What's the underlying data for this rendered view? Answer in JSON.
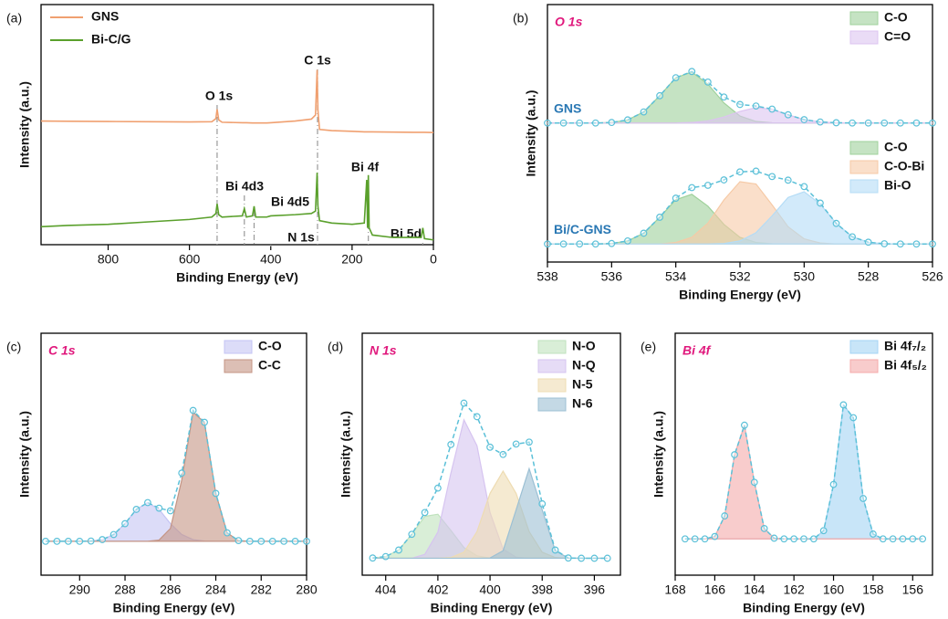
{
  "chart_data": [
    {
      "type": "line",
      "panel_label": "(a)",
      "xlabel": "Binding Energy (eV)",
      "ylabel": "Intensity (a.u.)",
      "xlim": [
        965,
        0
      ],
      "xticks": [
        800,
        600,
        400,
        200,
        0
      ],
      "ylim": [
        0,
        100
      ],
      "x": [
        965,
        900,
        800,
        700,
        600,
        545,
        535,
        532,
        528,
        520,
        470,
        465,
        460,
        445,
        441,
        437,
        410,
        400,
        340,
        300,
        290,
        286,
        284,
        280,
        250,
        200,
        170,
        164,
        162,
        160,
        158,
        150,
        100,
        50,
        30,
        26,
        22,
        0
      ],
      "series": [
        {
          "name": "GNS",
          "color": "#f0a070",
          "values": [
            51.5,
            51.4,
            51.3,
            51.2,
            51.1,
            51.2,
            52.5,
            56.4,
            52,
            51,
            50.8,
            50.8,
            50.8,
            50.7,
            50.7,
            50.7,
            50.7,
            50.8,
            51.5,
            52.3,
            54,
            72.8,
            56,
            48,
            47.5,
            47.2,
            47,
            47,
            47,
            47,
            47,
            47,
            46.9,
            46.8,
            46.8,
            46.8,
            46.8,
            46.7
          ]
        },
        {
          "name": "Bi-C/G",
          "color": "#5aa02c",
          "values": [
            7.5,
            8,
            8.5,
            9.5,
            10.5,
            11.5,
            13,
            17,
            12.5,
            11.5,
            12,
            15,
            11.5,
            12,
            16,
            11.5,
            11.5,
            12,
            12.5,
            13,
            14,
            30,
            16,
            10,
            9,
            8.5,
            9,
            27,
            7,
            29,
            7,
            4,
            3,
            3,
            3,
            7,
            2.5,
            2
          ]
        }
      ],
      "annotations": [
        {
          "text": "O 1s",
          "x": 532
        },
        {
          "text": "Bi 4d3",
          "x": 465
        },
        {
          "text": "Bi 4d5",
          "x": 441
        },
        {
          "text": "N 1s",
          "x": 400
        },
        {
          "text": "C 1s",
          "x": 285
        },
        {
          "text": "Bi 4f",
          "x": 160
        },
        {
          "text": "Bi 5d",
          "x": 26
        }
      ]
    },
    {
      "type": "xps-fit",
      "panel_label": "(b)",
      "title": "O 1s",
      "xlabel": "Binding Energy (eV)",
      "ylabel": "Intensity (a.u.)",
      "xlim": [
        538,
        526
      ],
      "xticks": [
        538,
        536,
        534,
        532,
        530,
        528,
        526
      ],
      "ylim": [
        0,
        100
      ],
      "envelope_color": "#5bc0d8",
      "x": [
        538,
        537.5,
        537,
        536.5,
        536,
        535.5,
        535,
        534.5,
        534,
        533.5,
        533,
        532.5,
        532,
        531.5,
        531,
        530.5,
        530,
        529.5,
        529,
        528.5,
        528,
        527.5,
        527,
        526.5,
        526
      ],
      "spectra": [
        {
          "label": "GNS",
          "label_color": "#2a78b4",
          "series": [
            {
              "name": "C-O",
              "color": "#9fd19b",
              "values": [
                54,
                54,
                54,
                54,
                54.2,
                55.2,
                58.3,
                64.6,
                71.6,
                73.8,
                69.1,
                61.8,
                56.7,
                54.6,
                54.1,
                54,
                54,
                54,
                54,
                54,
                54,
                54,
                54,
                54,
                54
              ]
            },
            {
              "name": "C=O",
              "color": "#dcc4f0",
              "values": [
                54,
                54,
                54,
                54,
                54,
                54,
                54,
                54,
                54,
                54.2,
                54.8,
                56.3,
                58.5,
                60,
                59.3,
                57.2,
                55.3,
                54.4,
                54.1,
                54,
                54,
                54,
                54,
                54,
                54
              ]
            }
          ],
          "envelope": [
            54,
            54,
            54,
            54,
            54.2,
            55.2,
            58.3,
            64.6,
            71.6,
            74,
            69.9,
            64.1,
            61.2,
            60.6,
            59.4,
            57.2,
            55.3,
            54.4,
            54.1,
            54,
            54,
            54,
            54,
            54,
            54
          ]
        },
        {
          "label": "Bi/C-GNS",
          "label_color": "#2a78b4",
          "series": [
            {
              "name": "C-O",
              "color": "#9fd19b",
              "values": [
                7,
                7,
                7,
                7,
                7.2,
                8.2,
                11.2,
                17.4,
                24.2,
                26.3,
                21.7,
                14.6,
                9.6,
                7.6,
                7.1,
                7,
                7,
                7,
                7,
                7,
                7,
                7,
                7,
                7,
                7
              ]
            },
            {
              "name": "C-O-Bi",
              "color": "#f6caa6",
              "values": [
                7,
                7,
                7,
                7,
                7,
                7,
                7,
                7,
                7.6,
                9.6,
                15.1,
                24.1,
                31.2,
                30.3,
                22.2,
                13.7,
                9,
                7.4,
                7,
                7,
                7,
                7,
                7,
                7,
                7
              ]
            },
            {
              "name": "Bi-O",
              "color": "#b4dcf6",
              "values": [
                7,
                7,
                7,
                7,
                7,
                7,
                7,
                7,
                7,
                7,
                7,
                7.2,
                8.2,
                11.4,
                17.9,
                25.1,
                27.3,
                22.5,
                15,
                9.8,
                7.7,
                7.1,
                7,
                7,
                7
              ]
            }
          ],
          "envelope": [
            7,
            7,
            7,
            7,
            7.2,
            8.2,
            11.2,
            17.4,
            24.8,
            28.9,
            29.8,
            31.9,
            35,
            35.3,
            33.2,
            31.8,
            29.3,
            22.9,
            15,
            9.8,
            7.7,
            7.1,
            7,
            7,
            7
          ]
        }
      ]
    },
    {
      "type": "xps-fit",
      "panel_label": "(c)",
      "title": "C 1s",
      "xlabel": "Binding Energy (eV)",
      "ylabel": "Intensity (a.u.)",
      "xlim": [
        291.7,
        280
      ],
      "xticks": [
        290,
        288,
        286,
        284,
        282,
        280
      ],
      "ylim": [
        0,
        100
      ],
      "envelope_color": "#5bc0d8",
      "x": [
        291.5,
        291,
        290.5,
        290,
        289.5,
        289,
        288.5,
        288,
        287.5,
        287,
        286.5,
        286,
        285.5,
        285,
        284.5,
        284,
        283.5,
        283,
        282.5,
        282,
        281.5,
        281,
        280.5,
        280
      ],
      "spectra": [
        {
          "series": [
            {
              "name": "C-O",
              "color": "#c4c4f4",
              "values": [
                14,
                14,
                14,
                14,
                14.1,
                14.7,
                16.8,
                21.3,
                27.2,
                30,
                27.2,
                21.3,
                16.8,
                14.7,
                14.1,
                14,
                14,
                14,
                14,
                14,
                14,
                14,
                14,
                14
              ]
            },
            {
              "name": "C-C",
              "color": "#c49484",
              "values": [
                14,
                14,
                14,
                14,
                14,
                14,
                14,
                14,
                14,
                14,
                14.5,
                19.3,
                39.4,
                67.4,
                63.1,
                33.8,
                17.5,
                14.3,
                14,
                14,
                14,
                14,
                14,
                14
              ]
            }
          ],
          "envelope": [
            14,
            14,
            14,
            14,
            14.1,
            14.7,
            16.8,
            21.3,
            27.2,
            30,
            27.7,
            26.6,
            42.2,
            68.1,
            63.2,
            33.8,
            17.5,
            14.3,
            14,
            14,
            14,
            14,
            14,
            14
          ]
        }
      ]
    },
    {
      "type": "xps-fit",
      "panel_label": "(d)",
      "title": "N 1s",
      "xlabel": "Binding Energy (eV)",
      "ylabel": "Intensity (a.u.)",
      "xlim": [
        404.9,
        395
      ],
      "xticks": [
        404,
        402,
        400,
        398,
        396
      ],
      "ylim": [
        0,
        100
      ],
      "envelope_color": "#5bc0d8",
      "x": [
        404.5,
        404,
        403.5,
        403,
        402.5,
        402,
        401.5,
        401,
        400.5,
        400,
        399.5,
        399,
        398.5,
        398,
        397.5,
        397,
        396.5,
        396,
        395.5
      ],
      "spectra": [
        {
          "series": [
            {
              "name": "N-O",
              "color": "#bfe2bd",
              "values": [
                7.1,
                7.7,
                10.4,
                16.9,
                24.3,
                25.2,
                18.5,
                11.4,
                8,
                7.1,
                7,
                7,
                7,
                7,
                7,
                7,
                7,
                7,
                7
              ]
            },
            {
              "name": "N-Q",
              "color": "#d6c4f0",
              "values": [
                7,
                7,
                7,
                7,
                8.6,
                17.8,
                42.2,
                64.2,
                53.5,
                25.9,
                10.8,
                7.4,
                7,
                7,
                7,
                7,
                7,
                7,
                7
              ]
            },
            {
              "name": "N-5",
              "color": "#eedcb2",
              "values": [
                7,
                7,
                7,
                7,
                7,
                7,
                7.3,
                9.5,
                18,
                33.8,
                43,
                33.8,
                18,
                9.5,
                7.3,
                7,
                7,
                7,
                7
              ]
            },
            {
              "name": "N-6",
              "color": "#9cc0d4",
              "values": [
                7,
                7,
                7,
                7,
                7,
                7,
                7,
                7,
                7,
                7.1,
                10.1,
                27,
                44,
                27,
                10.1,
                7.1,
                7,
                7,
                7
              ]
            }
          ],
          "envelope": [
            7.1,
            7.7,
            10.4,
            16.9,
            25.9,
            36,
            54,
            71.1,
            65.5,
            52.9,
            49.9,
            54.2,
            55,
            29.5,
            10.4,
            7.1,
            7,
            7,
            7
          ]
        }
      ]
    },
    {
      "type": "xps-fit",
      "panel_label": "(e)",
      "title": "Bi 4f",
      "xlabel": "Binding Energy (eV)",
      "ylabel": "Intensity (a.u.)",
      "xlim": [
        168,
        155
      ],
      "xticks": [
        168,
        166,
        164,
        162,
        160,
        158,
        156
      ],
      "ylim": [
        0,
        100
      ],
      "envelope_color": "#5bc0d8",
      "x": [
        167.5,
        167,
        166.5,
        166,
        165.5,
        165,
        164.5,
        164,
        163.5,
        163,
        162.5,
        162,
        161.5,
        161,
        160.5,
        160,
        159.5,
        159,
        158.5,
        158,
        157.5,
        157,
        156.5,
        156,
        155.5
      ],
      "spectra": [
        {
          "series": [
            {
              "name": "Bi 4f₇/₂",
              "color": "#a4d4f4",
              "values": [
                15,
                15,
                15,
                15,
                15,
                15,
                15,
                15,
                15,
                15,
                15,
                15,
                15,
                15,
                18.4,
                37.5,
                70.4,
                65.1,
                31.7,
                17,
                15,
                15,
                15,
                15,
                15
              ]
            },
            {
              "name": "Bi 4f₅/₂",
              "color": "#f4aaaa",
              "values": [
                15,
                15,
                15,
                16,
                24.5,
                49.8,
                62,
                38.4,
                19.3,
                15.3,
                15,
                15,
                15,
                15,
                15,
                15,
                15,
                15,
                15,
                15,
                15,
                15,
                15,
                15,
                15
              ]
            }
          ],
          "envelope": [
            15,
            15,
            15,
            16,
            24.5,
            49.8,
            62,
            38.4,
            19.3,
            15.3,
            15,
            15,
            15,
            15,
            18.4,
            37.5,
            70.4,
            65.1,
            31.7,
            17,
            15,
            15,
            15,
            15,
            15
          ]
        }
      ]
    }
  ]
}
